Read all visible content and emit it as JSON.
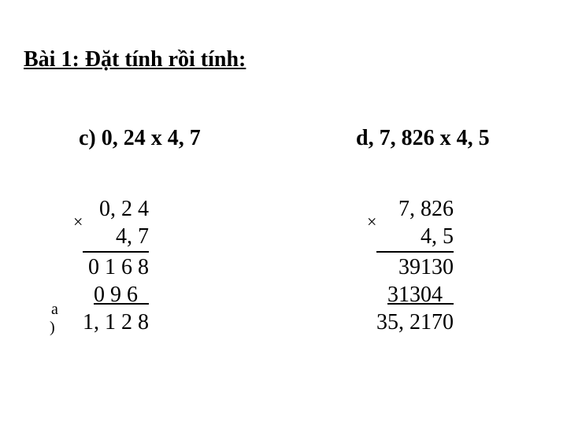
{
  "title": "Bài 1: Đặt tính rồi tính:",
  "stray": {
    "a": "a",
    "paren": ")"
  },
  "problemC": {
    "heading": "c) 0, 24 x 4, 7",
    "multiplicand": "0, 2 4",
    "multiplier": "4, 7",
    "partial1": "0 1 6 8",
    "partial2": "0 9 6  ",
    "result": "1, 1 2 8",
    "multSymbol": "×"
  },
  "problemD": {
    "heading": "d, 7, 826 x 4, 5",
    "multiplicand": "7, 826",
    "multiplier": "4, 5",
    "partial1": "39130",
    "partial2": "31304  ",
    "result": "35, 2170",
    "multSymbol": "×"
  }
}
